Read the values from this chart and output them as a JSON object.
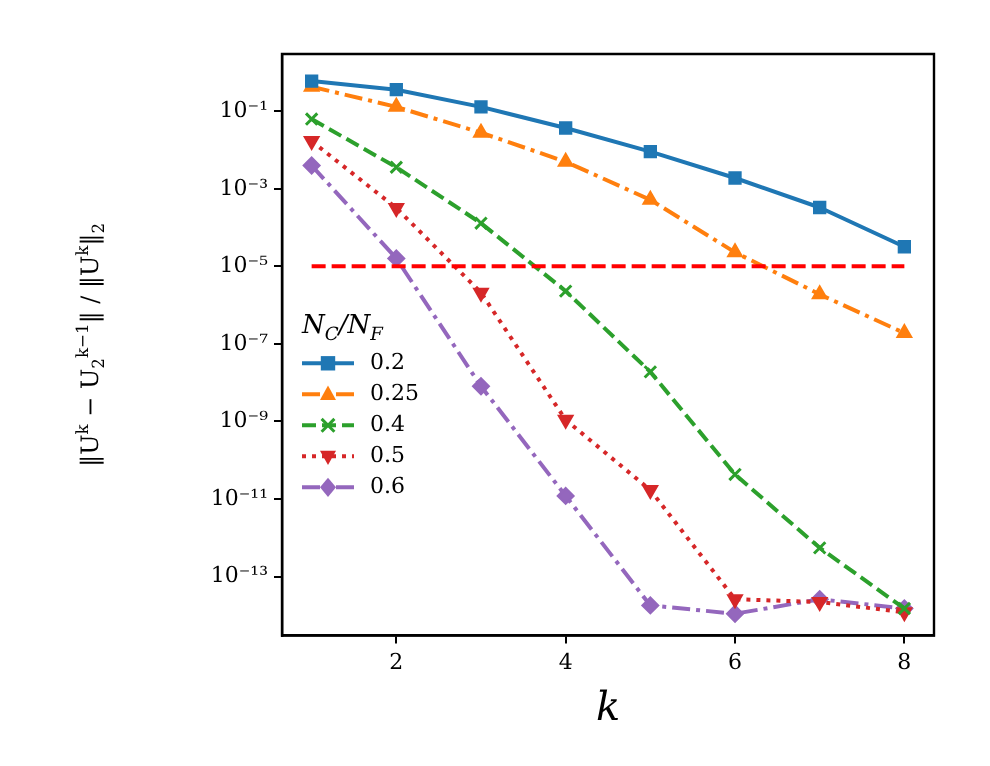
{
  "chart_data": {
    "type": "line",
    "xlabel": "k",
    "ylabel": "‖U$^{k}$ − U$_{2}$$^{k−1}$‖ / ‖U$^{k}$‖$_{2}$",
    "legend_title": "N$_{C}$/N$_{F}$",
    "x": [
      1,
      2,
      3,
      4,
      5,
      6,
      7,
      8
    ],
    "series": [
      {
        "name": "0.2",
        "color": "#1f77b4",
        "marker": "square",
        "line_style": "solid",
        "values": [
          0.6,
          0.36,
          0.13,
          0.037,
          0.0091,
          0.0019,
          0.00033,
          3.2e-05
        ]
      },
      {
        "name": "0.25",
        "color": "#ff7f0e",
        "marker": "triangle",
        "line_style": "dashdot",
        "values": [
          0.43,
          0.13,
          0.028,
          0.005,
          0.00052,
          2.3e-05,
          1.9e-06,
          1.9e-07
        ]
      },
      {
        "name": "0.4",
        "color": "#2ca02c",
        "marker": "cross",
        "line_style": "dashed",
        "values": [
          0.063,
          0.0036,
          0.00013,
          2.3e-06,
          1.9e-08,
          4.3e-11,
          5.5e-13,
          1.5e-14
        ]
      },
      {
        "name": "0.5",
        "color": "#d62728",
        "marker": "triangle-down",
        "line_style": "dotted",
        "values": [
          0.017,
          0.00032,
          2.1e-06,
          1.1e-09,
          1.7e-11,
          2.6e-14,
          2.2e-14,
          1.2e-14
        ]
      },
      {
        "name": "0.6",
        "color": "#9467bd",
        "marker": "diamond",
        "line_style": "dashdot",
        "values": [
          0.004,
          1.6e-05,
          8.1e-09,
          1.2e-11,
          1.8e-14,
          1.1e-14,
          2.6e-14,
          1.5e-14
        ]
      }
    ],
    "ref_lines": [
      {
        "axis": "y",
        "value": 1e-05,
        "color": "#ff0000",
        "line_style": "dashed"
      }
    ],
    "log": "y",
    "xlim": [
      0.65,
      8.35
    ],
    "xticks": [
      2,
      4,
      6,
      8
    ],
    "ylim": [
      3e-15,
      3
    ],
    "yticks": [
      {
        "value": 0.1,
        "label": "10⁻¹"
      },
      {
        "value": 0.001,
        "label": "10⁻³"
      },
      {
        "value": 1e-05,
        "label": "10⁻⁵"
      },
      {
        "value": 1e-07,
        "label": "10⁻⁷"
      },
      {
        "value": 1e-09,
        "label": "10⁻⁹"
      },
      {
        "value": 1e-11,
        "label": "10⁻¹¹"
      },
      {
        "value": 1e-13,
        "label": "10⁻¹³"
      }
    ],
    "grid": false,
    "legend": "left"
  }
}
